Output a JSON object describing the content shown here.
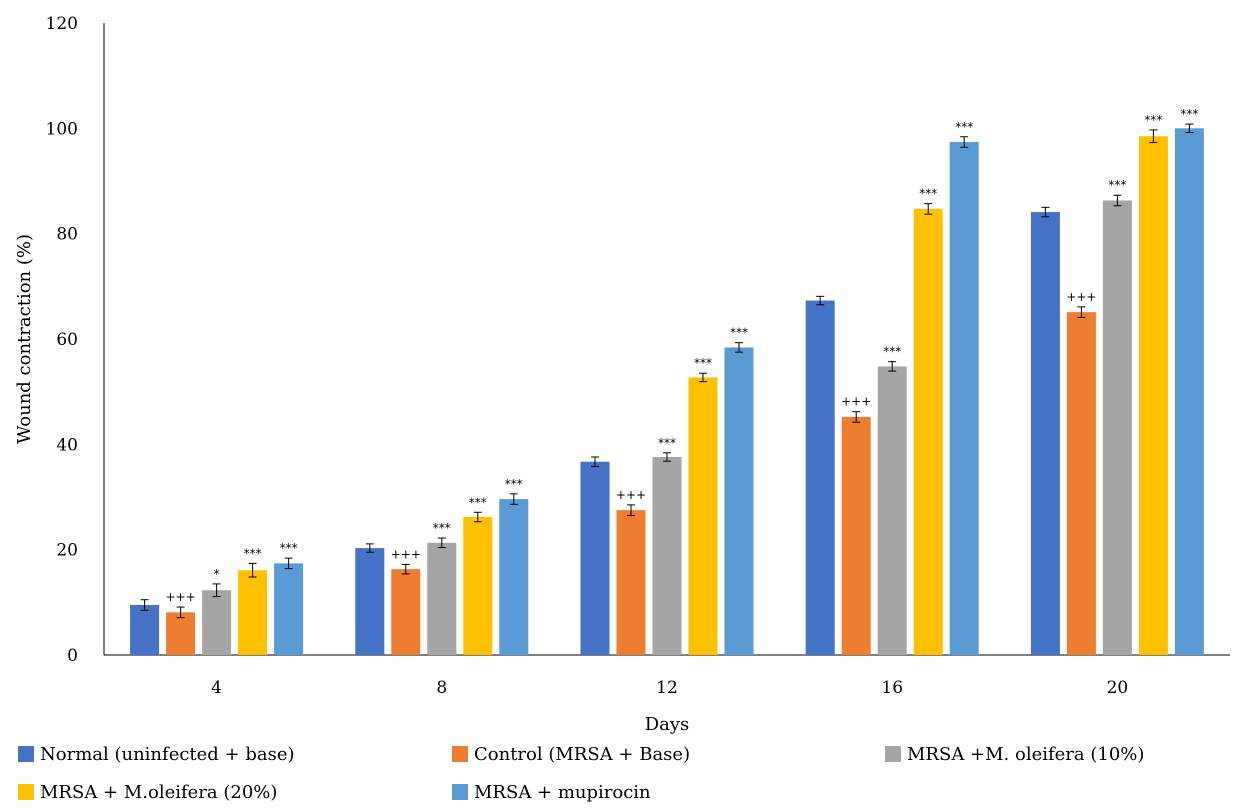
{
  "chart_data": {
    "type": "bar",
    "title": "",
    "xlabel": "Days",
    "ylabel": "Wound contraction (%)",
    "ylim": [
      0,
      120
    ],
    "yticks": [
      0,
      20,
      40,
      60,
      80,
      100,
      120
    ],
    "grid": false,
    "legend_position": "bottom",
    "categories": [
      "4",
      "8",
      "12",
      "16",
      "20"
    ],
    "series": [
      {
        "name": "Normal (uninfected + base)",
        "color": "#4472C4",
        "values": [
          9.5,
          20.3,
          36.7,
          67.3,
          84.1
        ],
        "errors": [
          1.0,
          0.8,
          0.9,
          0.8,
          0.9
        ],
        "annotations": [
          "",
          "",
          "",
          "",
          ""
        ]
      },
      {
        "name": "Control (MRSA + Base)",
        "color": "#ED7D31",
        "values": [
          8.1,
          16.3,
          27.5,
          45.2,
          65.1
        ],
        "errors": [
          1.0,
          0.9,
          1.0,
          1.0,
          1.0
        ],
        "annotations": [
          "+++",
          "+++",
          "+++",
          "+++",
          "+++"
        ]
      },
      {
        "name": "MRSA +M. oleifera (10%)",
        "color": "#A5A5A5",
        "values": [
          12.3,
          21.3,
          37.6,
          54.8,
          86.3
        ],
        "errors": [
          1.2,
          0.9,
          0.8,
          0.9,
          1.0
        ],
        "annotations": [
          "*",
          "***",
          "***",
          "***",
          "***"
        ]
      },
      {
        "name": "MRSA + M.oleifera (20%)",
        "color": "#FFC000",
        "values": [
          16.1,
          26.2,
          52.7,
          84.7,
          98.5
        ],
        "errors": [
          1.3,
          0.9,
          0.8,
          1.0,
          1.2
        ],
        "annotations": [
          "***",
          "***",
          "***",
          "***",
          "***"
        ]
      },
      {
        "name": "MRSA + mupirocin",
        "color": "#5B9BD5",
        "values": [
          17.4,
          29.6,
          58.4,
          97.4,
          100.0
        ],
        "errors": [
          1.0,
          1.0,
          0.9,
          1.0,
          0.8
        ],
        "annotations": [
          "***",
          "***",
          "***",
          "***",
          "***"
        ]
      }
    ]
  }
}
